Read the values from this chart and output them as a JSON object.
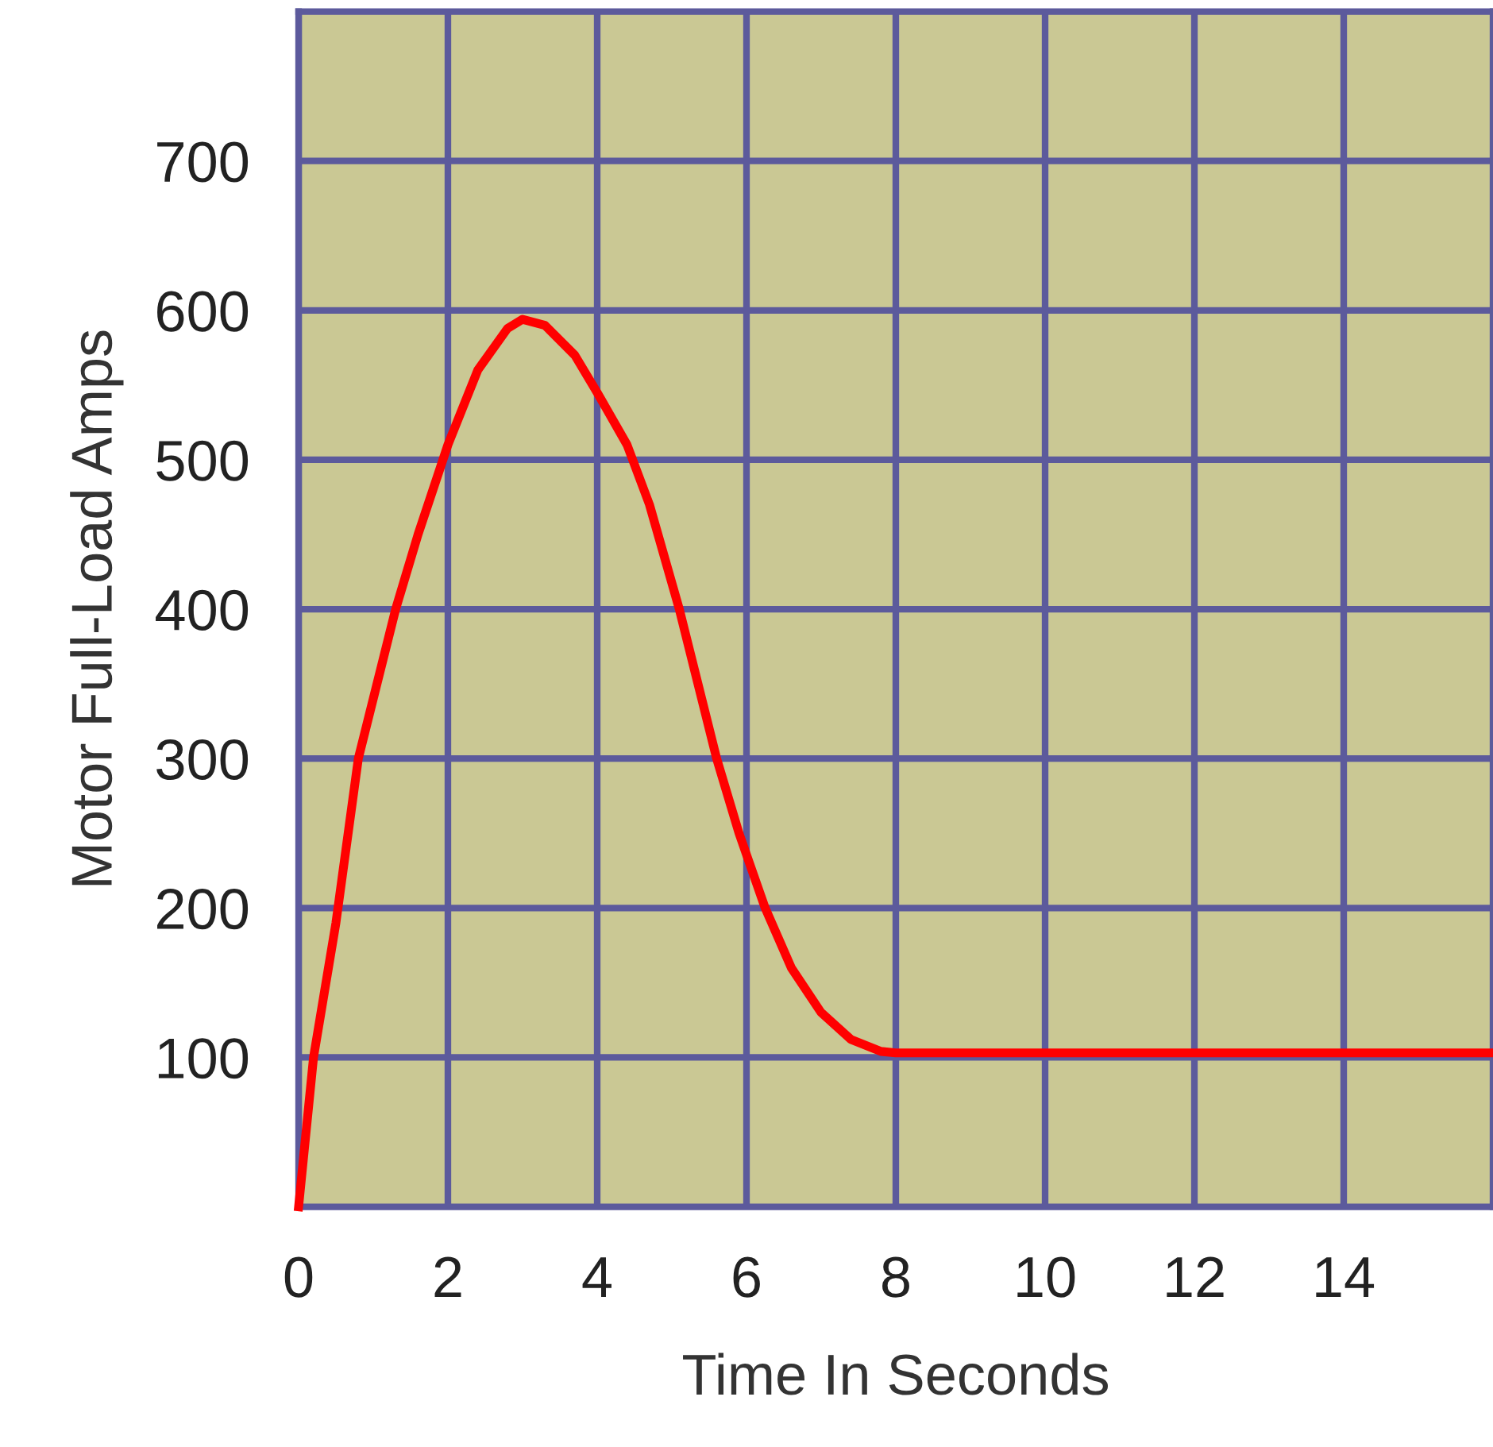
{
  "chart_data": {
    "type": "line",
    "xlabel": "Time In Seconds",
    "ylabel": "Motor Full-Load Amps",
    "x": [
      0,
      0.2,
      0.5,
      0.8,
      1.0,
      1.3,
      1.6,
      2.0,
      2.4,
      2.8,
      3.0,
      3.3,
      3.7,
      4.0,
      4.4,
      4.7,
      5.1,
      5.4,
      5.6,
      5.9,
      6.25,
      6.6,
      7.0,
      7.4,
      7.8,
      8.0,
      10,
      12,
      14,
      16
    ],
    "series": [
      {
        "color": "#ff0000",
        "values": [
          0,
          100,
          190,
          300,
          340,
          400,
          450,
          510,
          560,
          588,
          594,
          590,
          570,
          545,
          510,
          470,
          400,
          340,
          300,
          250,
          200,
          160,
          130,
          112,
          104,
          103,
          103,
          103,
          103,
          103
        ]
      }
    ],
    "xlim": [
      0,
      16
    ],
    "ylim": [
      0,
      800
    ],
    "xticks": [
      0,
      2,
      4,
      6,
      8,
      10,
      12,
      14
    ],
    "yticks": [
      100,
      200,
      300,
      400,
      500,
      600,
      700
    ],
    "grid": true,
    "marker": "none",
    "line_style": "solid",
    "legend": false
  }
}
